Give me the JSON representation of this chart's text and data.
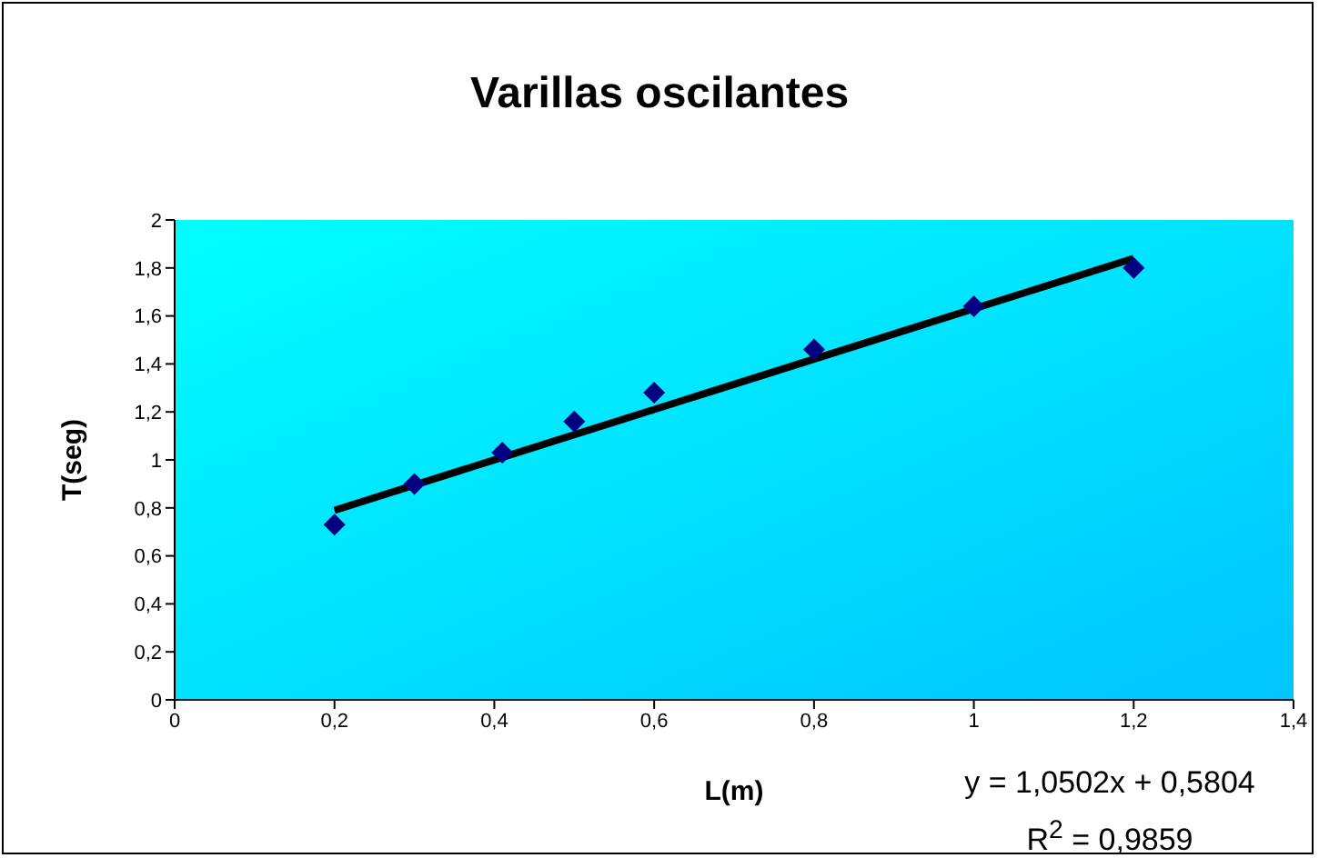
{
  "chart_data": {
    "type": "scatter",
    "title": "Varillas oscilantes",
    "xlabel": "L(m)",
    "ylabel": "T(seg)",
    "annotations": [
      "y = 1,0502x + 0,5804",
      "R$^{2}$ = 0,9859"
    ],
    "series": [
      {
        "type": "scatter",
        "color": "#000080",
        "marker": "diamond",
        "x": [
          0.2,
          0.3,
          0.41,
          0.5,
          0.6,
          0.8,
          1.0,
          1.2
        ],
        "values": [
          0.73,
          0.9,
          1.03,
          1.16,
          1.28,
          1.46,
          1.64,
          1.8
        ]
      },
      {
        "type": "line",
        "color": "#000000",
        "marker": "none",
        "line_style": "solid",
        "x": [
          0.2,
          1.2
        ],
        "values": [
          0.79,
          1.84
        ]
      }
    ],
    "xlim": [
      0,
      1.4
    ],
    "ylim": [
      0,
      2
    ],
    "xticks": [
      0,
      {
        "value": 0.2,
        "label": "0,2"
      },
      {
        "value": 0.4,
        "label": "0,4"
      },
      {
        "value": 0.6,
        "label": "0,6"
      },
      {
        "value": 0.8,
        "label": "0,8"
      },
      1,
      {
        "value": 1.2,
        "label": "1,2"
      },
      {
        "value": 1.4,
        "label": "1,4"
      }
    ],
    "yticks": [
      0,
      {
        "value": 0.2,
        "label": "0,2"
      },
      {
        "value": 0.4,
        "label": "0,4"
      },
      {
        "value": 0.6,
        "label": "0,6"
      },
      {
        "value": 0.8,
        "label": "0,8"
      },
      1,
      {
        "value": 1.2,
        "label": "1,2"
      },
      {
        "value": 1.4,
        "label": "1,4"
      },
      {
        "value": 1.6,
        "label": "1,6"
      },
      {
        "value": 1.8,
        "label": "1,8"
      },
      2
    ],
    "grid": false,
    "legend": false
  }
}
